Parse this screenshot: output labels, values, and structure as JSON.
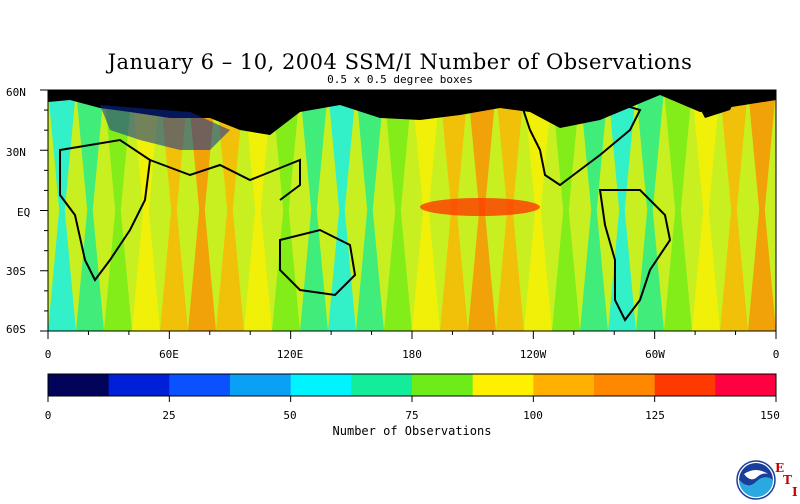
{
  "title": "January 6 – 10, 2004 SSM/I Number of Observations",
  "subtitle": "0.5 x 0.5 degree boxes",
  "lat_labels": [
    "60N",
    "30N",
    "EQ",
    "30S",
    "60S"
  ],
  "lon_labels": [
    "0",
    "60E",
    "120E",
    "180",
    "120W",
    "60W",
    "0"
  ],
  "colorbar": {
    "title": "Number of Observations",
    "ticks": [
      "0",
      "25",
      "50",
      "75",
      "100",
      "125",
      "150"
    ],
    "colors": [
      "#02045a",
      "#0020d8",
      "#0a52ff",
      "#0aa0f4",
      "#00f4ff",
      "#13ec9a",
      "#6cec18",
      "#fff000",
      "#ffb000",
      "#ff8800",
      "#ff3a00",
      "#ff0040"
    ]
  },
  "logo": {
    "name": "noaa-logo",
    "text": "NOAA"
  },
  "eti": {
    "e": "E",
    "t": "T",
    "i": "I"
  },
  "chart_data": {
    "type": "heatmap",
    "title": "January 6 – 10, 2004 SSM/I Number of Observations",
    "subtitle": "0.5 x 0.5 degree boxes",
    "lon_range": [
      0,
      360
    ],
    "lat_range": [
      -60,
      60
    ],
    "value_range": [
      0,
      150
    ],
    "colorbar_label": "Number of Observations",
    "projection": "equirectangular",
    "land_color": "#000000"
  }
}
